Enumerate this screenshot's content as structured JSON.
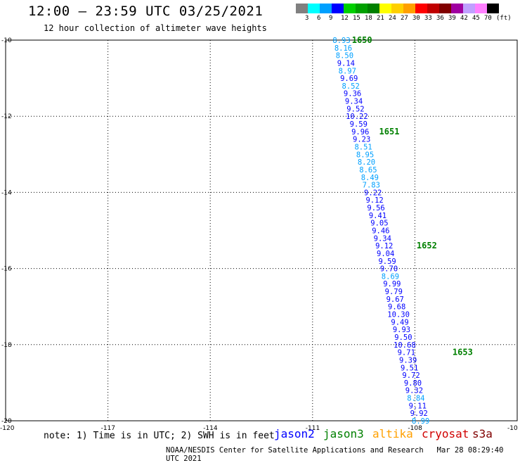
{
  "header": {
    "title": "12:00 – 23:59 UTC 03/25/2021",
    "subtitle": "12 hour collection of altimeter wave heights"
  },
  "legend": {
    "colors": [
      "#808080",
      "#00ffff",
      "#00a0ff",
      "#0000ff",
      "#00d000",
      "#00a000",
      "#008000",
      "#ffff00",
      "#ffd000",
      "#ffa000",
      "#ff0000",
      "#c00000",
      "#800000",
      "#a000a0",
      "#c0a0ff",
      "#ff80ff",
      "#000000"
    ],
    "labels": [
      "3",
      "6",
      "9",
      "12",
      "15",
      "18",
      "21",
      "24",
      "27",
      "30",
      "33",
      "36",
      "39",
      "42",
      "45",
      "70",
      "(ft)"
    ]
  },
  "axes": {
    "lat_labels": [
      "-10",
      "-12",
      "-14",
      "-16",
      "-18",
      "-20"
    ],
    "lon_labels": [
      "-120",
      "-117",
      "-114",
      "-111",
      "-108",
      "-10"
    ]
  },
  "chart_data": {
    "type": "scatter",
    "xlim": [
      -120,
      -105
    ],
    "ylim": [
      -20,
      -10
    ],
    "grid": true,
    "points": [
      {
        "lon": -110.15,
        "lat": -10.0,
        "v": "8.93"
      },
      {
        "lon": -110.1,
        "lat": -10.2,
        "v": "8.16"
      },
      {
        "lon": -110.06,
        "lat": -10.4,
        "v": "8.50"
      },
      {
        "lon": -110.02,
        "lat": -10.6,
        "v": "9.14"
      },
      {
        "lon": -109.98,
        "lat": -10.8,
        "v": "8.97"
      },
      {
        "lon": -109.93,
        "lat": -11.0,
        "v": "9.69"
      },
      {
        "lon": -109.88,
        "lat": -11.2,
        "v": "8.52"
      },
      {
        "lon": -109.83,
        "lat": -11.4,
        "v": "9.36"
      },
      {
        "lon": -109.79,
        "lat": -11.6,
        "v": "9.34"
      },
      {
        "lon": -109.74,
        "lat": -11.8,
        "v": "9.52"
      },
      {
        "lon": -109.7,
        "lat": -12.0,
        "v": "10.22"
      },
      {
        "lon": -109.65,
        "lat": -12.2,
        "v": "9.59"
      },
      {
        "lon": -109.6,
        "lat": -12.4,
        "v": "9.96"
      },
      {
        "lon": -109.56,
        "lat": -12.6,
        "v": "9.23"
      },
      {
        "lon": -109.51,
        "lat": -12.8,
        "v": "8.51"
      },
      {
        "lon": -109.46,
        "lat": -13.0,
        "v": "8.95"
      },
      {
        "lon": -109.42,
        "lat": -13.2,
        "v": "8.20"
      },
      {
        "lon": -109.37,
        "lat": -13.4,
        "v": "8.65"
      },
      {
        "lon": -109.32,
        "lat": -13.6,
        "v": "8.49"
      },
      {
        "lon": -109.28,
        "lat": -13.8,
        "v": "7.83"
      },
      {
        "lon": -109.23,
        "lat": -14.0,
        "v": "9.22"
      },
      {
        "lon": -109.18,
        "lat": -14.2,
        "v": "9.12"
      },
      {
        "lon": -109.14,
        "lat": -14.4,
        "v": "9.56"
      },
      {
        "lon": -109.09,
        "lat": -14.6,
        "v": "9.41"
      },
      {
        "lon": -109.04,
        "lat": -14.8,
        "v": "9.05"
      },
      {
        "lon": -109.0,
        "lat": -15.0,
        "v": "9.46"
      },
      {
        "lon": -108.95,
        "lat": -15.2,
        "v": "9.34"
      },
      {
        "lon": -108.9,
        "lat": -15.4,
        "v": "9.12"
      },
      {
        "lon": -108.86,
        "lat": -15.6,
        "v": "9.04"
      },
      {
        "lon": -108.81,
        "lat": -15.8,
        "v": "9.59"
      },
      {
        "lon": -108.76,
        "lat": -16.0,
        "v": "9.70"
      },
      {
        "lon": -108.72,
        "lat": -16.2,
        "v": "8.69"
      },
      {
        "lon": -108.67,
        "lat": -16.4,
        "v": "9.99"
      },
      {
        "lon": -108.62,
        "lat": -16.6,
        "v": "9.79"
      },
      {
        "lon": -108.58,
        "lat": -16.8,
        "v": "9.67"
      },
      {
        "lon": -108.53,
        "lat": -17.0,
        "v": "9.68"
      },
      {
        "lon": -108.48,
        "lat": -17.2,
        "v": "10.30"
      },
      {
        "lon": -108.44,
        "lat": -17.4,
        "v": "9.49"
      },
      {
        "lon": -108.39,
        "lat": -17.6,
        "v": "9.93"
      },
      {
        "lon": -108.34,
        "lat": -17.8,
        "v": "9.50"
      },
      {
        "lon": -108.3,
        "lat": -18.0,
        "v": "10.68"
      },
      {
        "lon": -108.25,
        "lat": -18.2,
        "v": "9.71"
      },
      {
        "lon": -108.2,
        "lat": -18.4,
        "v": "9.39"
      },
      {
        "lon": -108.16,
        "lat": -18.6,
        "v": "9.51"
      },
      {
        "lon": -108.11,
        "lat": -18.8,
        "v": "9.72"
      },
      {
        "lon": -108.06,
        "lat": -19.0,
        "v": "9.80"
      },
      {
        "lon": -108.02,
        "lat": -19.2,
        "v": "9.32"
      },
      {
        "lon": -107.97,
        "lat": -19.4,
        "v": "8.84"
      },
      {
        "lon": -107.92,
        "lat": -19.6,
        "v": "9.11"
      },
      {
        "lon": -107.88,
        "lat": -19.8,
        "v": "9.92"
      },
      {
        "lon": -107.83,
        "lat": -20.0,
        "v": "8.99"
      }
    ],
    "time_labels": [
      {
        "lon": -109.55,
        "lat": -10.0,
        "t": "1650"
      },
      {
        "lon": -108.75,
        "lat": -12.4,
        "t": "1651"
      },
      {
        "lon": -107.65,
        "lat": -15.4,
        "t": "1652"
      },
      {
        "lon": -106.6,
        "lat": -18.2,
        "t": "1653"
      }
    ]
  },
  "footer": {
    "note": "note: 1) Time is in UTC; 2) SWH is in feet",
    "satellites": [
      {
        "name": "jason2",
        "color": "#0000ff"
      },
      {
        "name": "jason3",
        "color": "#008000"
      },
      {
        "name": "altika",
        "color": "#ffa000"
      },
      {
        "name": "cryosat",
        "color": "#d00000"
      },
      {
        "name": "s3a",
        "color": "#800000"
      }
    ],
    "credit": "NOAA/NESDIS Center for Satellite Applications and Research",
    "timestamp": "Mar 28 08:29:40 UTC 2021"
  }
}
